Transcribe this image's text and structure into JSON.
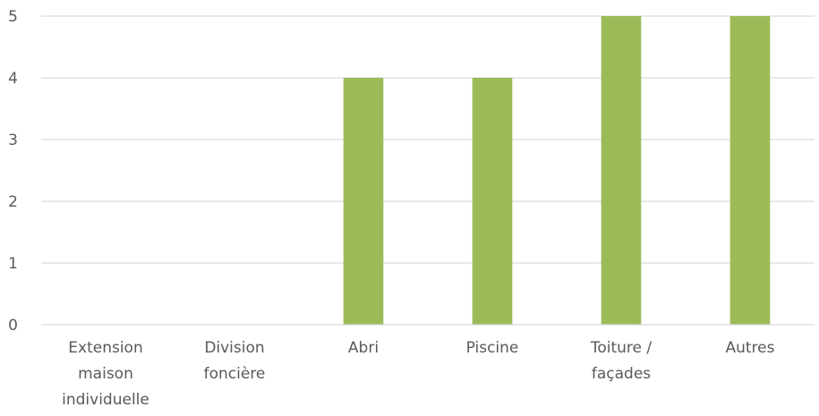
{
  "chart_data": {
    "type": "bar",
    "title": "",
    "xlabel": "",
    "ylabel": "",
    "categories": [
      [
        "Extension",
        "maison",
        "individuelle"
      ],
      [
        "Division",
        "foncière"
      ],
      [
        "Abri"
      ],
      [
        "Piscine"
      ],
      [
        "Toiture /",
        "façades"
      ],
      [
        "Autres"
      ]
    ],
    "values": [
      0,
      0,
      4,
      4,
      5,
      5
    ],
    "ylim": [
      0,
      5
    ],
    "yticks": [
      "0",
      "1",
      "2",
      "3",
      "4",
      "5"
    ],
    "grid": true,
    "legend": "none",
    "colors": {
      "bar": "#9bbb59",
      "grid": "#d9d9d9",
      "text": "#595959"
    }
  }
}
